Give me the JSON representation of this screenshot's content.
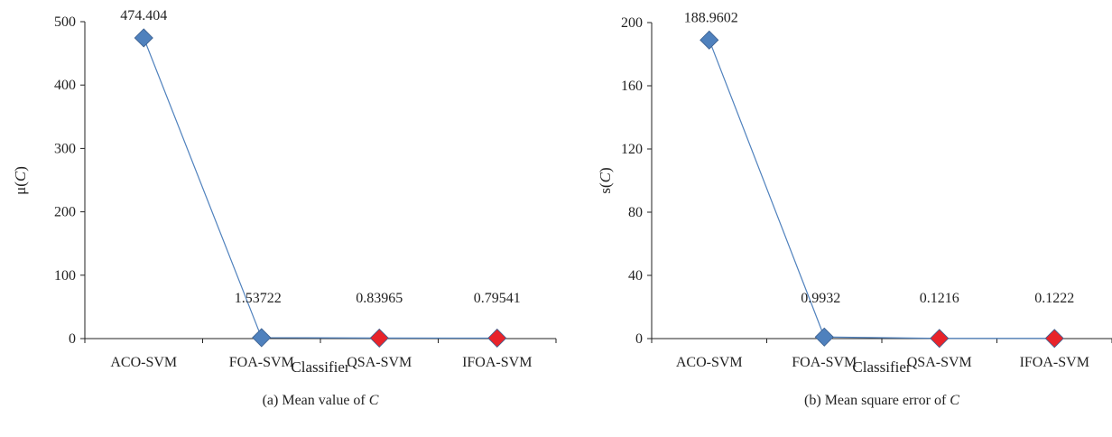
{
  "chart_data": [
    {
      "type": "line",
      "categories": [
        "ACO-SVM",
        "FOA-SVM",
        "QSA-SVM",
        "IFOA-SVM"
      ],
      "values": [
        474.404,
        1.53722,
        0.83965,
        0.79541
      ],
      "data_labels": [
        "474.404",
        "1.53722",
        "0.83965",
        "0.79541"
      ],
      "xlabel": "Classifier",
      "ylabel": {
        "pre": "μ(",
        "var": "C",
        "post": ")"
      },
      "ylim": [
        0,
        500
      ],
      "yticks": [
        "0",
        "100",
        "200",
        "300",
        "400",
        "500"
      ],
      "caption": {
        "pre": "(a)  Mean value of ",
        "var": "C"
      },
      "grid": false,
      "marker_colors": [
        "#4f81bd",
        "#4f81bd",
        "#e8232a",
        "#e8232a"
      ],
      "line_color": "#4f81bd"
    },
    {
      "type": "line",
      "categories": [
        "ACO-SVM",
        "FOA-SVM",
        "QSA-SVM",
        "IFOA-SVM"
      ],
      "values": [
        188.9602,
        0.9932,
        0.1216,
        0.1222
      ],
      "data_labels": [
        "188.9602",
        "0.9932",
        "0.1216",
        "0.1222"
      ],
      "xlabel": "Classifier",
      "ylabel": {
        "pre": "s(",
        "var": "C",
        "post": ")"
      },
      "ylim": [
        0,
        200
      ],
      "yticks": [
        "0",
        "40",
        "80",
        "120",
        "160",
        "200"
      ],
      "caption": {
        "pre": "(b)  Mean square error of ",
        "var": "C"
      },
      "grid": false,
      "marker_colors": [
        "#4f81bd",
        "#4f81bd",
        "#e8232a",
        "#e8232a"
      ],
      "line_color": "#4f81bd"
    }
  ]
}
